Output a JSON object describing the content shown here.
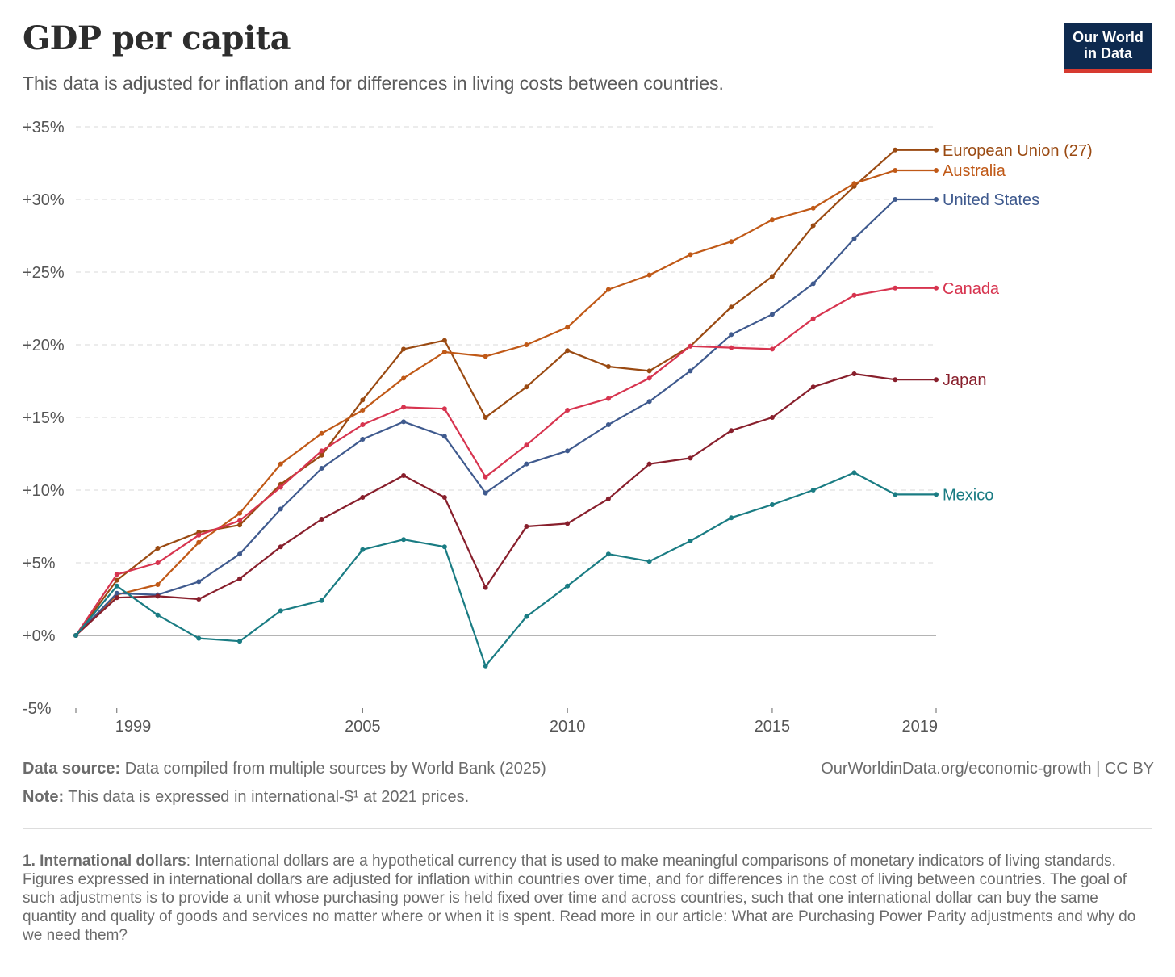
{
  "header": {
    "title": "GDP per capita",
    "subtitle": "This data is adjusted for inflation and for differences in living costs between countries.",
    "logo_line1": "Our World",
    "logo_line2": "in Data"
  },
  "colors": {
    "grid": "#d9d9d9",
    "zero_line": "#888888",
    "axis_text": "#555555",
    "logo_bg": "#0e2a4f",
    "logo_bar": "#d63a30"
  },
  "chart_data": {
    "type": "line",
    "title": "GDP per capita",
    "xlabel": "",
    "ylabel": "",
    "xlim": [
      1998,
      2019
    ],
    "ylim": [
      -5,
      35
    ],
    "x_ticks": [
      1999,
      2005,
      2010,
      2015,
      2019
    ],
    "y_ticks": [
      -5,
      0,
      5,
      10,
      15,
      20,
      25,
      30,
      35
    ],
    "y_tick_labels": [
      "-5%",
      "+0%",
      "+5%",
      "+10%",
      "+15%",
      "+20%",
      "+25%",
      "+30%",
      "+35%"
    ],
    "grid": "horizontal-dashed",
    "legend": "end-of-line labels",
    "x": [
      1998,
      1999,
      2000,
      2001,
      2002,
      2003,
      2004,
      2005,
      2006,
      2007,
      2008,
      2009,
      2010,
      2011,
      2012,
      2013,
      2014,
      2015,
      2016,
      2017,
      2018,
      2019
    ],
    "series": [
      {
        "name": "European Union (27)",
        "color": "#9a4a12",
        "values": [
          0,
          3.8,
          6.0,
          7.1,
          7.6,
          10.4,
          12.4,
          16.2,
          19.7,
          20.3,
          15.0,
          17.1,
          19.6,
          18.5,
          18.2,
          19.9,
          22.6,
          24.7,
          28.2,
          30.9,
          33.4,
          33.4
        ]
      },
      {
        "name": "Australia",
        "color": "#c05917",
        "values": [
          0,
          2.8,
          3.5,
          6.4,
          8.4,
          11.8,
          13.9,
          15.5,
          17.7,
          19.5,
          19.2,
          20.0,
          21.2,
          23.8,
          24.8,
          26.2,
          27.1,
          28.6,
          29.4,
          31.1,
          32.0,
          32.0
        ]
      },
      {
        "name": "United States",
        "color": "#3f5a8e",
        "values": [
          0,
          2.9,
          2.8,
          3.7,
          5.6,
          8.7,
          11.5,
          13.5,
          14.7,
          13.7,
          9.8,
          11.8,
          12.7,
          14.5,
          16.1,
          18.2,
          20.7,
          22.1,
          24.2,
          27.3,
          30.0,
          30.0
        ]
      },
      {
        "name": "Canada",
        "color": "#d7344f",
        "values": [
          0,
          4.2,
          5.0,
          6.9,
          7.9,
          10.2,
          12.7,
          14.5,
          15.7,
          15.6,
          10.9,
          13.1,
          15.5,
          16.3,
          17.7,
          19.9,
          19.8,
          19.7,
          21.8,
          23.4,
          23.9,
          23.9
        ]
      },
      {
        "name": "Japan",
        "color": "#881f2c",
        "values": [
          0,
          2.6,
          2.7,
          2.5,
          3.9,
          6.1,
          8.0,
          9.5,
          11.0,
          9.5,
          3.3,
          7.5,
          7.7,
          9.4,
          11.8,
          12.2,
          14.1,
          15.0,
          17.1,
          18.0,
          17.6,
          17.6
        ]
      },
      {
        "name": "Mexico",
        "color": "#1a7c83",
        "values": [
          0,
          3.4,
          1.4,
          -0.2,
          -0.4,
          1.7,
          2.4,
          5.9,
          6.6,
          6.1,
          -2.1,
          1.3,
          3.4,
          5.6,
          5.1,
          6.5,
          8.1,
          9.0,
          10.0,
          11.2,
          9.7,
          9.7
        ]
      }
    ]
  },
  "footer": {
    "source_label": "Data source:",
    "source_text": " Data compiled from multiple sources by World Bank (2025)",
    "url_text": "OurWorldinData.org/economic-growth",
    "license_text": " | CC BY",
    "note_label": "Note:",
    "note_text": " This data is expressed in international-$¹ at 2021 prices.",
    "footnote_label": "1. International dollars",
    "footnote_text": ": International dollars are a hypothetical currency that is used to make meaningful comparisons of monetary indicators of living standards. Figures expressed in international dollars are adjusted for inflation within countries over time, and for differences in the cost of living between countries. The goal of such adjustments is to provide a unit whose purchasing power is held fixed over time and across countries, such that one international dollar can buy the same quantity and quality of goods and services no matter where or when it is spent. Read more in our article: What are Purchasing Power Parity adjustments and why do we need them?"
  }
}
